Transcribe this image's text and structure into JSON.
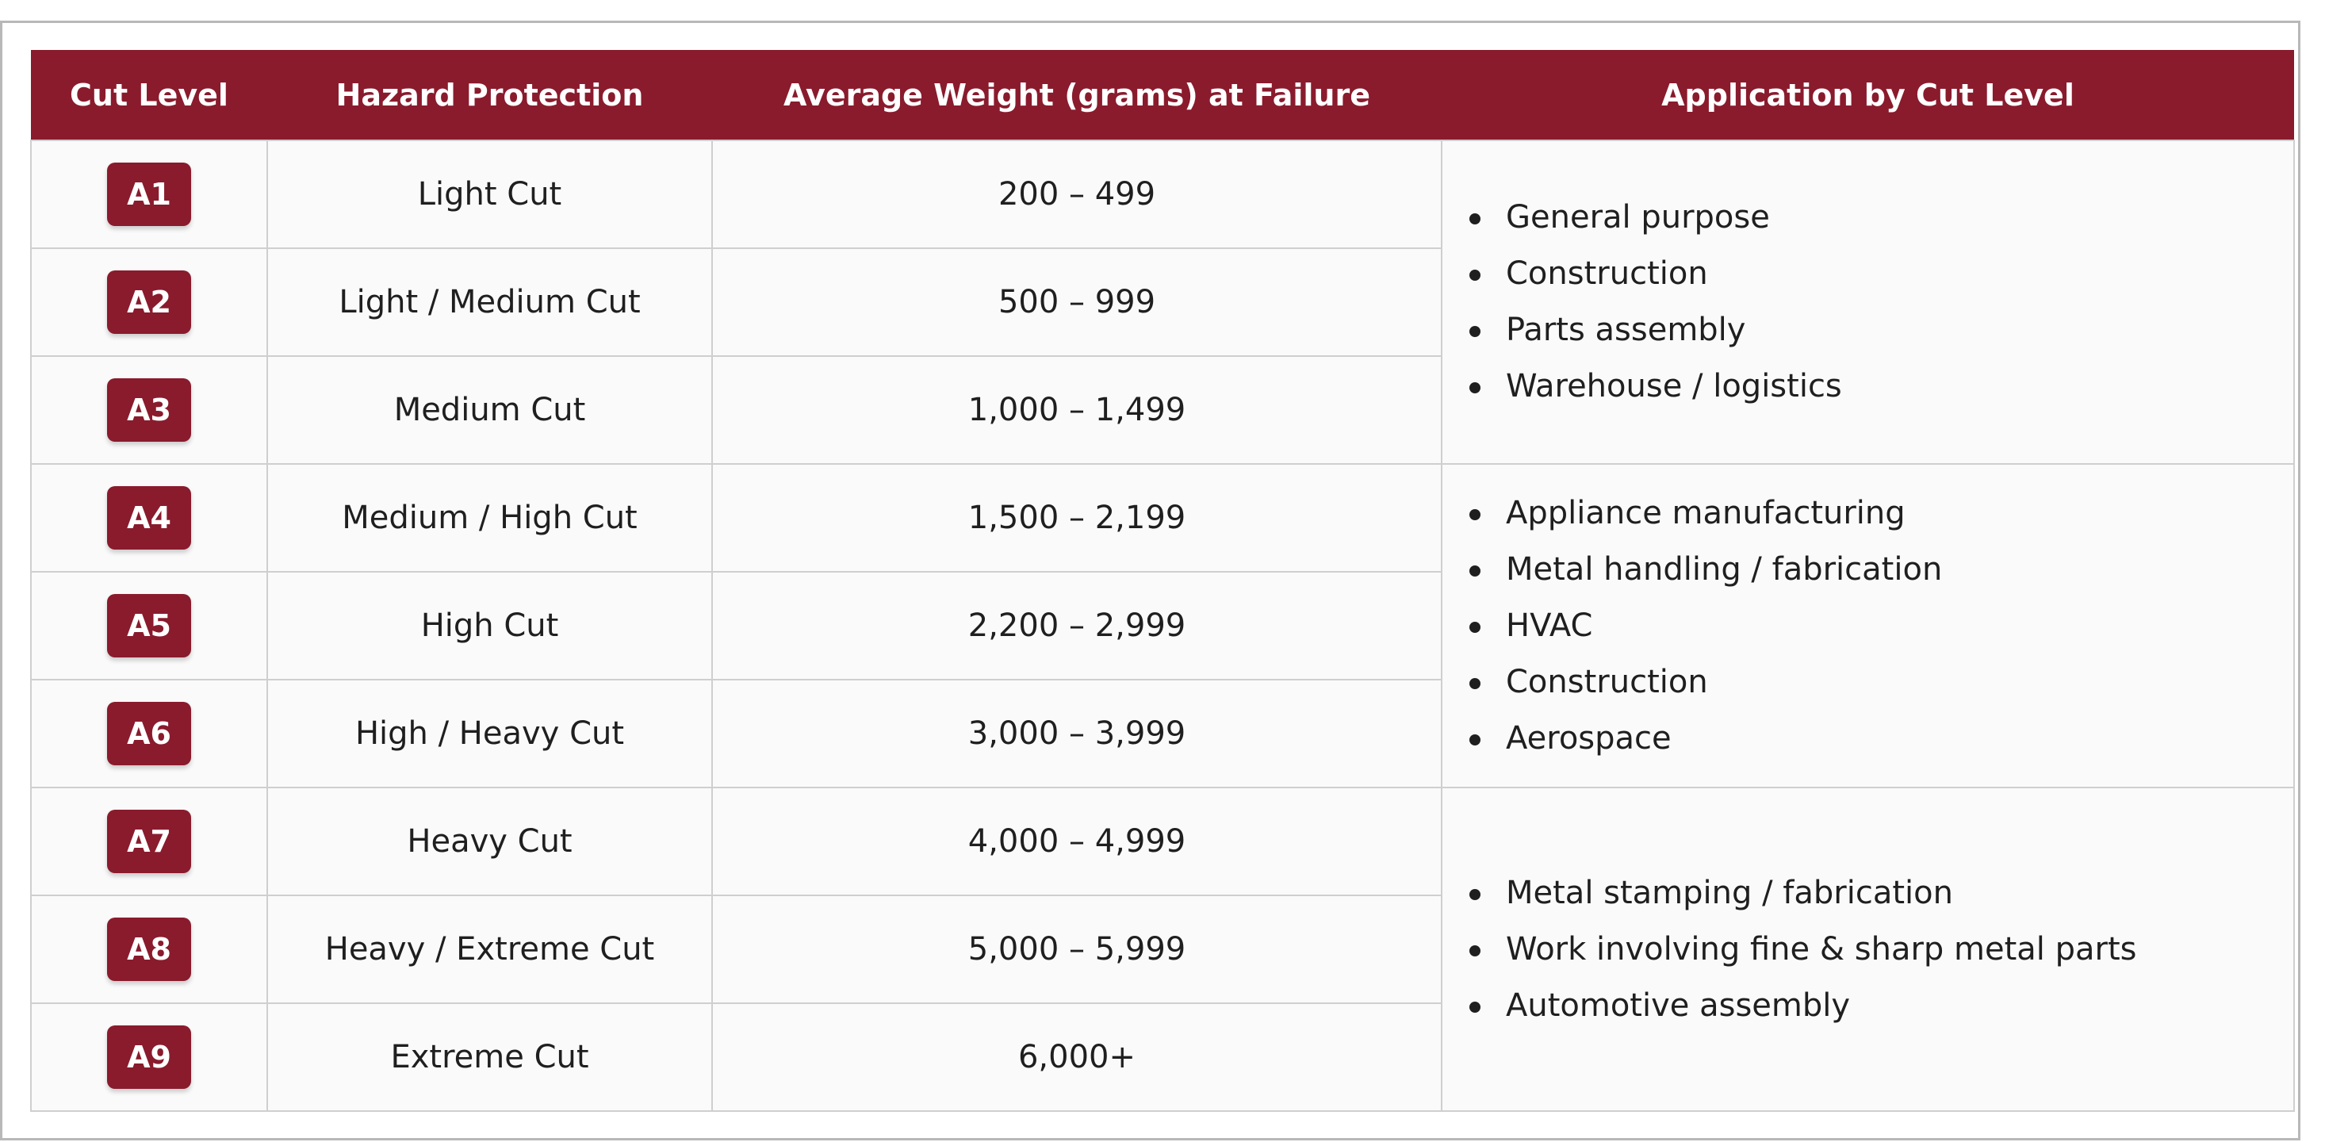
{
  "headers": {
    "cut_level": "Cut Level",
    "hazard": "Hazard Protection",
    "weight": "Average Weight (grams) at Failure",
    "application": "Application by Cut Level"
  },
  "rows": [
    {
      "level": "A1",
      "hazard": "Light Cut",
      "weight": "200 – 499"
    },
    {
      "level": "A2",
      "hazard": "Light / Medium Cut",
      "weight": "500 – 999"
    },
    {
      "level": "A3",
      "hazard": "Medium Cut",
      "weight": "1,000 – 1,499"
    },
    {
      "level": "A4",
      "hazard": "Medium / High Cut",
      "weight": "1,500 – 2,199"
    },
    {
      "level": "A5",
      "hazard": "High Cut",
      "weight": "2,200 – 2,999"
    },
    {
      "level": "A6",
      "hazard": "High / Heavy Cut",
      "weight": "3,000 – 3,999"
    },
    {
      "level": "A7",
      "hazard": "Heavy Cut",
      "weight": "4,000 – 4,999"
    },
    {
      "level": "A8",
      "hazard": "Heavy / Extreme Cut",
      "weight": "5,000 – 5,999"
    },
    {
      "level": "A9",
      "hazard": "Extreme Cut",
      "weight": "6,000+"
    }
  ],
  "applications": [
    {
      "items": [
        "General purpose",
        "Construction",
        "Parts assembly",
        "Warehouse / logistics"
      ]
    },
    {
      "items": [
        "Appliance manufacturing",
        "Metal handling / fabrication",
        "HVAC",
        "Construction",
        "Aerospace"
      ]
    },
    {
      "items": [
        "Metal stamping / fabrication",
        "Work involving fine & sharp metal parts",
        "Automotive assembly"
      ]
    }
  ],
  "colors": {
    "header_bg": "#891b2d",
    "badge_bg": "#891b2d",
    "cell_bg": "#fafafa",
    "border": "#cfcfcf"
  }
}
